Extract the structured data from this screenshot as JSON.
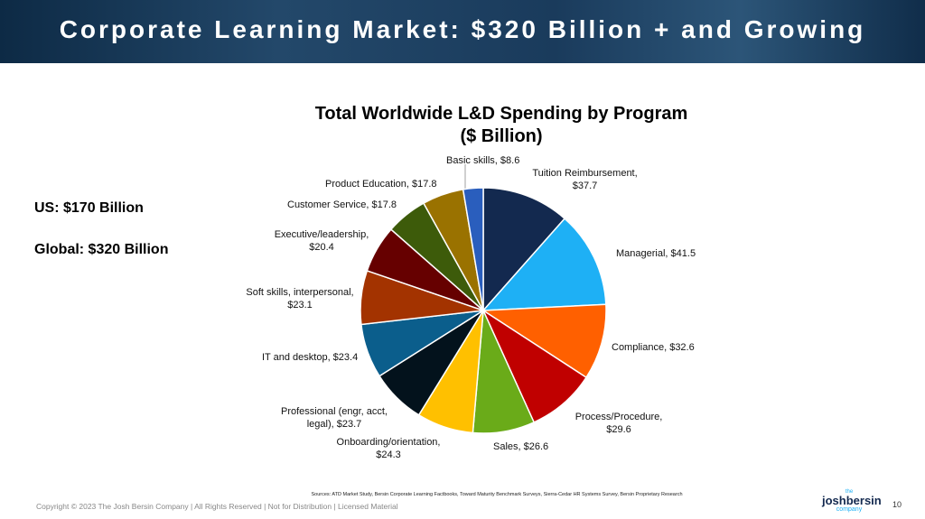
{
  "header": {
    "title": "Corporate Learning Market:  $320 Billion + and Growing"
  },
  "notes": [
    "US:  $170 Billion",
    "Global:  $320 Billion"
  ],
  "chart_data": {
    "type": "pie",
    "title": "Total Worldwide L&D Spending by Program",
    "subtitle": "($ Billion)",
    "values": [
      37.7,
      41.5,
      32.6,
      29.6,
      26.6,
      24.3,
      23.7,
      23.4,
      23.1,
      20.4,
      17.8,
      17.8,
      8.6
    ],
    "value_labels": [
      "Tuition Reimbursement, $37.7",
      "Managerial, $41.5",
      "Compliance, $32.6",
      "Process/Procedure, $29.6",
      "Sales, $26.6",
      "Onboarding/orientation, $24.3",
      "Professional (engr, acct, legal), $23.7",
      "IT and desktop, $23.4",
      "Soft skills, interpersonal, $23.1",
      "Executive/leadership, $20.4",
      "Customer Service, $17.8",
      "Product Education, $17.8",
      "Basic skills, $8.6"
    ],
    "colors": [
      "#13294f",
      "#1eb0f5",
      "#ff6000",
      "#c00000",
      "#6aab19",
      "#ffc000",
      "#03121c",
      "#0b5e8c",
      "#a33300",
      "#660000",
      "#3d5b0a",
      "#9a7200",
      "#2a5ebd"
    ]
  },
  "footer": {
    "sources": "Sources:  ATD Market Study, Bersin Corporate Learning Factbooks, Toward Maturity Benchmark Surveys, Sierra-Cedar HR Systems Survey, Bersin Proprietary Research",
    "copyright": "Copyright © 2023 The Josh Bersin Company | All Rights Reserved | Not for Distribution | Licensed Material",
    "logo": [
      "the",
      "joshbersin",
      "company"
    ],
    "page_number": "10"
  }
}
